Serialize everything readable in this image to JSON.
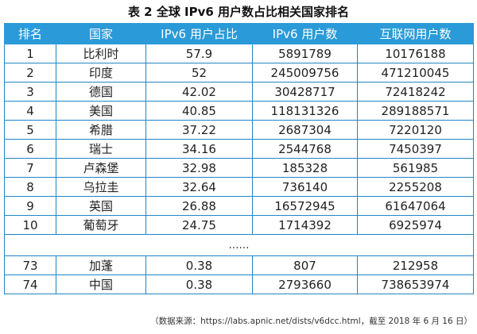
{
  "title": "表 2  全球 IPv6 用户数占比相关国家排名",
  "columns": [
    "排名",
    "国家",
    "IPv6 用户占比",
    "IPv6 用户数",
    "互联网用户数"
  ],
  "rows": [
    [
      "1",
      "比利时",
      "57.9",
      "5891789",
      "10176188"
    ],
    [
      "2",
      "印度",
      "52",
      "245009756",
      "471210045"
    ],
    [
      "3",
      "德国",
      "42.02",
      "30428717",
      "72418242"
    ],
    [
      "4",
      "美国",
      "40.85",
      "118131326",
      "289188571"
    ],
    [
      "5",
      "希腊",
      "37.22",
      "2687304",
      "7220120"
    ],
    [
      "6",
      "瑞士",
      "34.16",
      "2544768",
      "7450397"
    ],
    [
      "7",
      "卢森堡",
      "32.98",
      "185328",
      "561985"
    ],
    [
      "8",
      "乌拉圭",
      "32.64",
      "736140",
      "2255208"
    ],
    [
      "9",
      "英国",
      "26.88",
      "16572945",
      "61647064"
    ],
    [
      "10",
      "葡萄牙",
      "24.75",
      "1714392",
      "6925974"
    ]
  ],
  "ellipsis": "……",
  "tail_rows": [
    [
      "73",
      "加蓬",
      "0.38",
      "807",
      "212958"
    ],
    [
      "74",
      "中国",
      "0.38",
      "2793660",
      "738653974"
    ]
  ],
  "source": "（数据来源：https://labs.apnic.net/dists/v6dcc.html，截至 2018 年 6 月 16 日）",
  "colors": {
    "header_bg": "#2a9ad8",
    "border": "#1f86c8",
    "header_text": "#ffffff"
  }
}
